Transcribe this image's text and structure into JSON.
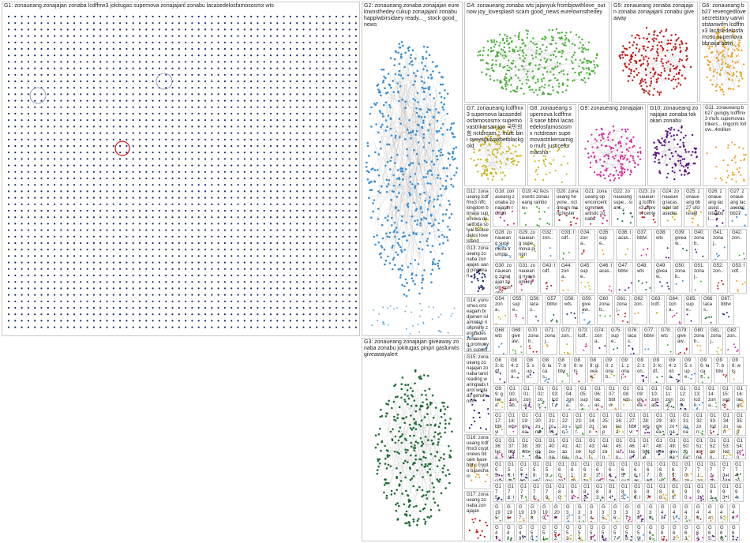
{
  "colors": {
    "g1_node": "#1a2a6c",
    "g1_ring": "#7a86b0",
    "g1_highlight": "#d01010",
    "g2_node": "#3a8fd0",
    "g3_node": "#1e6b35",
    "g4_node": "#4caf3a",
    "g5_node": "#c01818",
    "g6_node": "#e8a020",
    "g7_node": "#c8b820",
    "g9_node": "#d030a0",
    "g10_node": "#5a1080",
    "edge": "#9a9a9a"
  },
  "groups": [
    {
      "id": "G1",
      "label": "G1: zonaueang zonajajan zonaba lcdffmx3 jokitugas supemova zonajajanl zonabu lacasedelosfamososmx wts"
    },
    {
      "id": "G2",
      "label": "G2: zonaueang zonaba zonajajan eurelownsthedey cukup zonajajanl zonabu happlwbirsidaey ready..._ stock good_news"
    },
    {
      "id": "G3",
      "label": "G3: zonaueang zonajajan giveaway zonaba zonabu jokitugas pinpri gaslurwts giveawayalert"
    },
    {
      "id": "G4",
      "label": "G4: zonaueang zonaba wts jajanyuk frombjowthlove_outnow joy_lovesplash scam good_news eurelownsthedey"
    },
    {
      "id": "G5",
      "label": "G5: zonaueang zonaba zonajajan zonaba zonajajanl zonabu giveaway"
    },
    {
      "id": "G6",
      "label": "G6: zonaueang bb27 revengedlove secretstory uarwiststanwifm lcdffmx3 lacasedelosfamoso supemova bbnaija bbtvi"
    },
    {
      "id": "G7",
      "label": "G7: zonaueang lcdffmx3 supemova lacasedelosfamososmx supemovastrikersamigo 국민의힘 nctdream... mufc bini sweetgulvaxbetblackgold"
    },
    {
      "id": "G8",
      "label": "G8: zonaueang supemova lcdffmx3 sase bbtvi lacasedelosfamososmx nctdream supemovastrikersamigo mufc justiceformarsha"
    },
    {
      "id": "G9",
      "label": "G9: zonaueang zonajajan"
    },
    {
      "id": "G10",
      "label": "G10: zonaueang zonajajan zonaba tokokan zonabu"
    },
    {
      "id": "G11",
      "label": "G11: zonaueang bb27 guingly lcdffmx3 mufc supemovastrikers... lingorm follow...4million"
    },
    {
      "id": "G12",
      "label": "G12: zonaueang lcdffmx3 nffc kingdom bbnaija supemova desetfoda solyai lacasedelos lovelsland"
    },
    {
      "id": "G13",
      "label": "G13: zonaueang zonaba zonajajan uang pinjaman"
    },
    {
      "id": "G14",
      "label": "G14: yunusmus onceagain brdjamen islamistan risepmlife zengtades zonaueang promosyon supemova"
    },
    {
      "id": "G15",
      "label": "G15: zonaueang zonajajan zonaba tarotreading waringlads tarot wrglads genshinim"
    },
    {
      "id": "G16",
      "label": "G16: zonaueang lcdffmx3 cryptonews bitcoin base bbtvi crypto basechain"
    },
    {
      "id": "G17",
      "label": "G17: zonaueang zonaba zonajajan"
    },
    {
      "id": "G18",
      "label": "G18: zonaueang zonaba zonajajan tumiin"
    },
    {
      "id": "G19",
      "label": "G19: 42 fezsoserts zonaueang rainbow"
    },
    {
      "id": "G20",
      "label": "G20: zonaueang heyone.. nctdream manchester"
    },
    {
      "id": "G21",
      "label": "G21: zonaueang openconcent commiss artistic zonabu"
    },
    {
      "id": "G22",
      "label": "G22: zonaueang supe... sianc..."
    },
    {
      "id": "G23",
      "label": "G23: zonaueang lcdffmx3 diprem cente"
    },
    {
      "id": "G24",
      "label": "G24: zonaueang lacasedel lacasedel"
    },
    {
      "id": "G25",
      "label": "G25: zonaueang bb27 ufcl israel"
    },
    {
      "id": "G26",
      "label": "G26: zonaueang lacased... istanbul..."
    },
    {
      "id": "G27",
      "label": "G27: zonaueang lacasedel bb27"
    },
    {
      "id": "G28",
      "label": "G28: zonaueang supemova trumpis..."
    },
    {
      "id": "G29",
      "label": "G29: zonaueang supemova pinpri"
    },
    {
      "id": "G30",
      "label": "G30: zonaueang zonajajan zoom zonaba"
    },
    {
      "id": "G31",
      "label": "G31: zonaueang nyayo emerg"
    }
  ],
  "small_group_prefixes": [
    "G32",
    "G33",
    "G34",
    "G35",
    "G36",
    "G37",
    "G38",
    "G39",
    "G40",
    "G41",
    "G42",
    "G43",
    "G44",
    "G45",
    "G46",
    "G47",
    "G48",
    "G49",
    "G50",
    "G51",
    "G52",
    "G53",
    "G54",
    "G55",
    "G56",
    "G57",
    "G58",
    "G59",
    "G60",
    "G61",
    "G62",
    "G63",
    "G64",
    "G65",
    "G66",
    "G67",
    "G68",
    "G69",
    "G70",
    "G71",
    "G72",
    "G73",
    "G74",
    "G75",
    "G76",
    "G77",
    "G78",
    "G79",
    "G80",
    "G81",
    "G82",
    "G83",
    "G84",
    "G85",
    "G86",
    "G87",
    "G88",
    "G89",
    "G90",
    "G91",
    "G92",
    "G93",
    "G94",
    "G95",
    "G96",
    "G97",
    "G98",
    "G99",
    "G100",
    "G101",
    "G102",
    "G103",
    "G104",
    "G105",
    "G106",
    "G107",
    "G108",
    "G109",
    "G110",
    "G111",
    "G112",
    "G113",
    "G114",
    "G115",
    "G116",
    "G117",
    "G118",
    "G119",
    "G120",
    "G121",
    "G122",
    "G123",
    "G124",
    "G125",
    "G126",
    "G127",
    "G128",
    "G129",
    "G130",
    "G131",
    "G132",
    "G133",
    "G134",
    "G135",
    "G136",
    "G137",
    "G138",
    "G139",
    "G140",
    "G141",
    "G142",
    "G143",
    "G144",
    "G145",
    "G146",
    "G147",
    "G148",
    "G149",
    "G150",
    "G151",
    "G152",
    "G153",
    "G154",
    "G155",
    "G156",
    "G157",
    "G158",
    "G159",
    "G160",
    "G161",
    "G162",
    "G163",
    "G164",
    "G165",
    "G166",
    "G167",
    "G168",
    "G169",
    "G170",
    "G171",
    "G172",
    "G173",
    "G174",
    "G175",
    "G176",
    "G177",
    "G178",
    "G179",
    "G180",
    "G181",
    "G182",
    "G183",
    "G184",
    "G185",
    "G186",
    "G187",
    "G188",
    "G189",
    "G190",
    "G191",
    "G192",
    "G193",
    "G194",
    "G195",
    "G196",
    "G197",
    "G198",
    "G199",
    "G200"
  ],
  "small_group_label_fragments": [
    "zon..",
    "lcdf..",
    "zona..",
    "supe..",
    "lacas..",
    "bbtvi",
    "wts",
    "giveaw..",
    "zonab..",
    "zonaj.."
  ]
}
